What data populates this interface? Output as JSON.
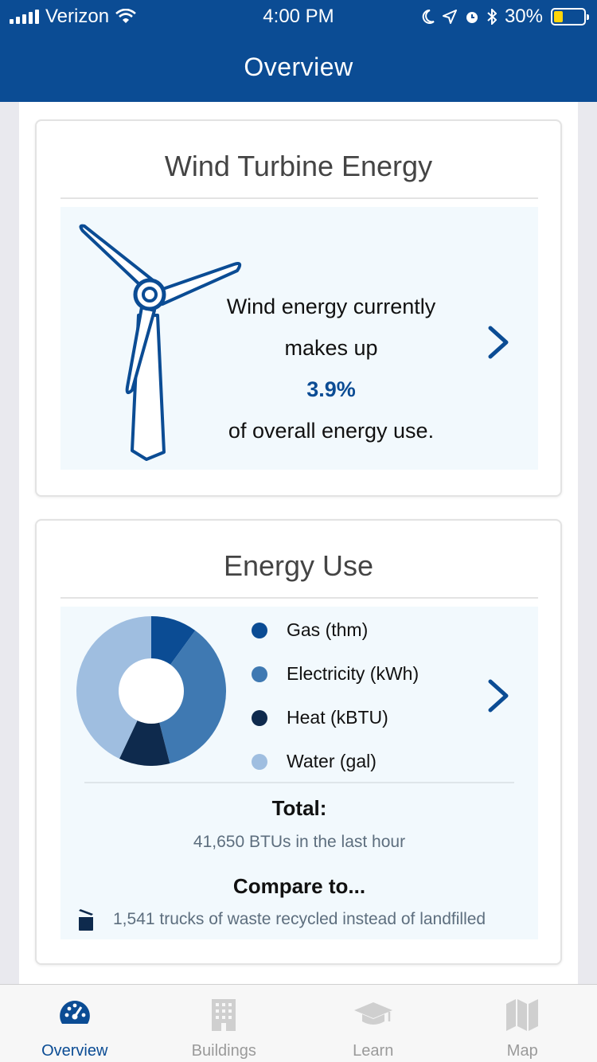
{
  "status": {
    "carrier": "Verizon",
    "time": "4:00 PM",
    "battery": "30%",
    "battery_level": 0.3
  },
  "header": {
    "title": "Overview"
  },
  "wind_card": {
    "title": "Wind Turbine Energy",
    "line1": "Wind energy currently",
    "line2": "makes up",
    "percent": "3.9%",
    "line3": "of overall energy use."
  },
  "energy_card": {
    "title": "Energy Use",
    "legend": [
      {
        "label": "Gas (thm)",
        "color": "#0b4c94"
      },
      {
        "label": "Electricity (kWh)",
        "color": "#3f79b2"
      },
      {
        "label": "Heat (kBTU)",
        "color": "#0e2a4d"
      },
      {
        "label": "Water (gal)",
        "color": "#9fbee0"
      }
    ],
    "total_label": "Total:",
    "total_value": "41,650 BTUs in the last hour",
    "compare_label": "Compare to...",
    "compare_text": "1,541 trucks of waste recycled instead of landfilled"
  },
  "tabs": [
    {
      "label": "Overview",
      "active": true,
      "icon": "speedometer-icon"
    },
    {
      "label": "Buildings",
      "active": false,
      "icon": "building-icon"
    },
    {
      "label": "Learn",
      "active": false,
      "icon": "graduation-cap-icon"
    },
    {
      "label": "Map",
      "active": false,
      "icon": "map-icon"
    }
  ],
  "colors": {
    "primary": "#0b4c94",
    "panel": "#f2f9fd"
  }
}
